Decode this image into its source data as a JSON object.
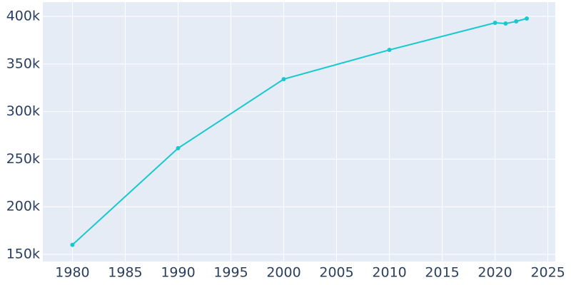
{
  "chart_data": {
    "type": "line",
    "x": [
      1980,
      1990,
      2000,
      2010,
      2020,
      2021,
      2022,
      2023
    ],
    "series": [
      {
        "color": "#17c9cf",
        "values": [
          160000,
          261500,
          334100,
          364800,
          393300,
          392500,
          394800,
          397800
        ]
      }
    ],
    "xlim": [
      1977.2,
      2025.7
    ],
    "xticks": [
      1980,
      1985,
      1990,
      1995,
      2000,
      2005,
      2010,
      2015,
      2020,
      2025
    ],
    "ylim": [
      142500,
      415000
    ],
    "yticks": [
      {
        "value": 150000,
        "label": "150k"
      },
      {
        "value": 200000,
        "label": "200k"
      },
      {
        "value": 250000,
        "label": "250k"
      },
      {
        "value": 300000,
        "label": "300k"
      },
      {
        "value": 350000,
        "label": "350k"
      },
      {
        "value": 400000,
        "label": "400k"
      }
    ],
    "grid": true
  }
}
